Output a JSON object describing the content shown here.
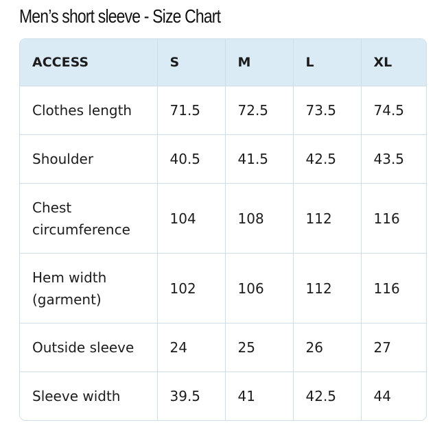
{
  "title": "Men’s short sleeve - Size Chart",
  "table": {
    "header": [
      "ACCESS",
      "S",
      "M",
      "L",
      "XL"
    ],
    "rows": [
      [
        "Clothes length",
        "71.5",
        "72.5",
        "73.5",
        "74.5"
      ],
      [
        "Shoulder",
        "40.5",
        "41.5",
        "42.5",
        "43.5"
      ],
      [
        "Chest circumference",
        "104",
        "108",
        "112",
        "116"
      ],
      [
        "Hem width (garment)",
        "102",
        "106",
        "112",
        "116"
      ],
      [
        "Outside sleeve",
        "24",
        "25",
        "26",
        "27"
      ],
      [
        "Sleeve width",
        "39.5",
        "41",
        "42.5",
        "44"
      ]
    ]
  }
}
